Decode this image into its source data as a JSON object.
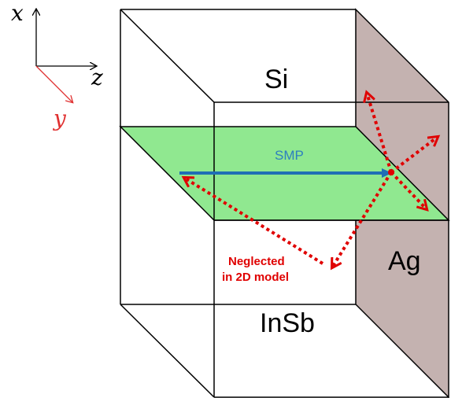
{
  "axes": {
    "x_label": "x",
    "y_label": "y",
    "z_label": "z"
  },
  "materials": {
    "top": "Si",
    "bottom": "InSb",
    "side": "Ag"
  },
  "beam_label": "SMP",
  "annotation": {
    "line1": "Neglected",
    "line2": "in 2D model"
  },
  "colors": {
    "plane_fill": "#90e890",
    "side_wall": "#c4b2b0",
    "beam": "#1f6fb5",
    "scatter": "#e00000",
    "y_axis": "#e03030",
    "smp_text": "#2d7fbf",
    "annotation_text": "#e00000"
  }
}
